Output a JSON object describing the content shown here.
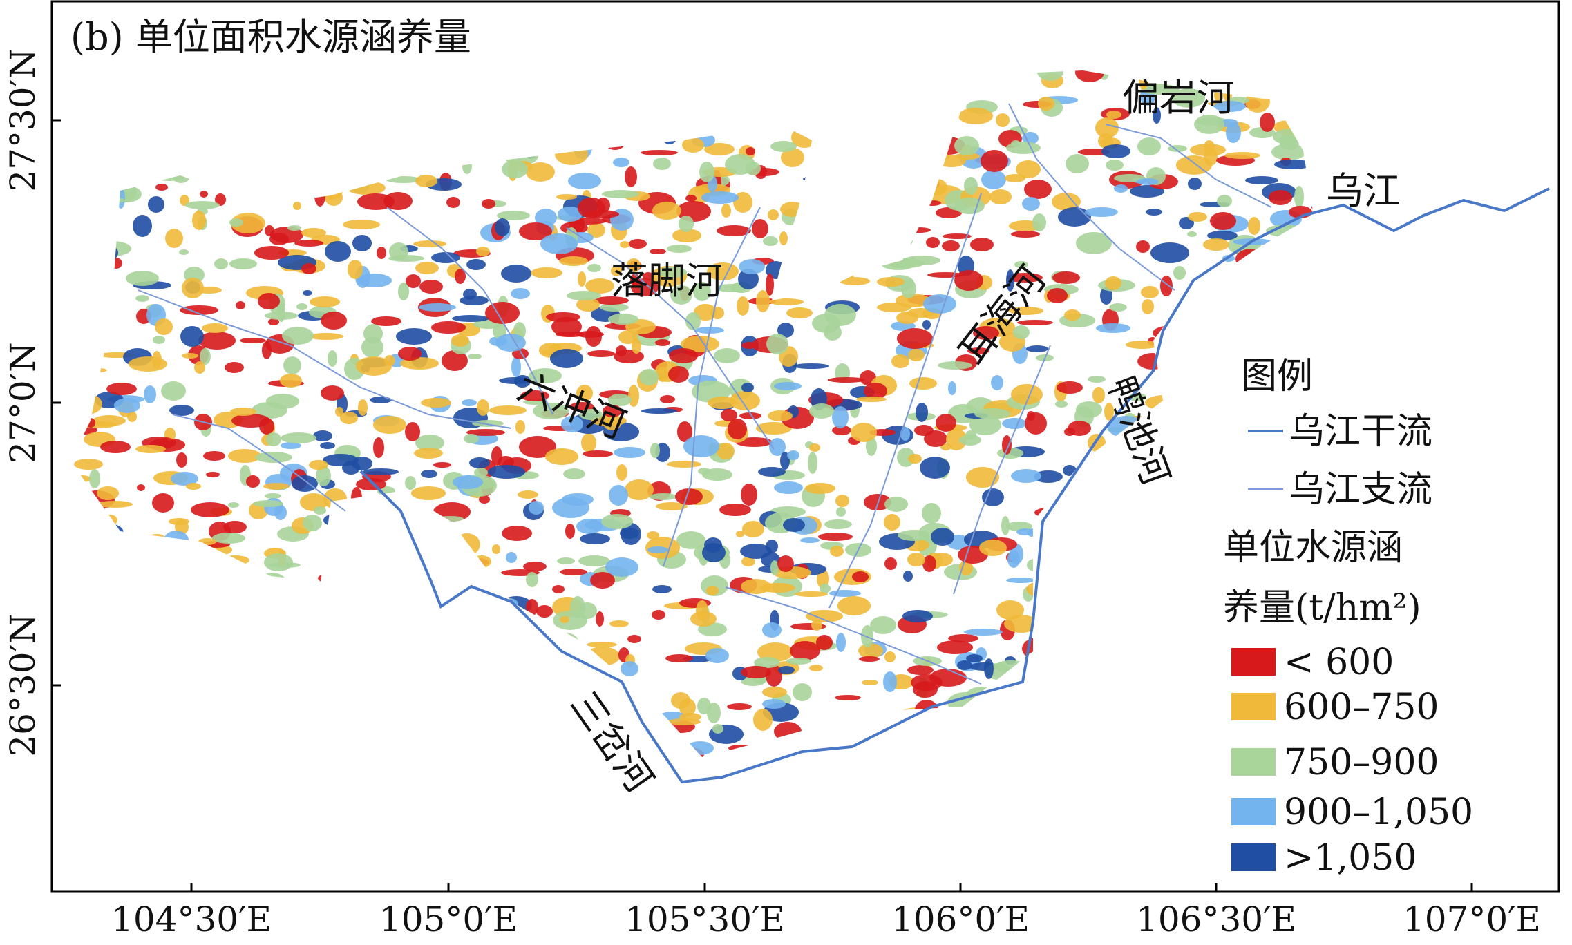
{
  "title": "(b) 单位面积水源涵养量",
  "axes": {
    "x_tick_labels": [
      "104°30′E",
      "105°0′E",
      "105°30′E",
      "106°0′E",
      "106°30′E",
      "107°0′E"
    ],
    "y_tick_labels": [
      "27°30′N",
      "27°0′N",
      "26°30′N"
    ]
  },
  "river_labels": [
    "偏岩河",
    "乌江",
    "落脚河",
    "耳海河",
    "六冲河",
    "鸭池河",
    "三岔河"
  ],
  "legend": {
    "title": "图例",
    "lines": [
      {
        "label": "乌江干流",
        "color": "#4a78c8"
      },
      {
        "label": "乌江支流",
        "color": "#7a9ad8"
      }
    ],
    "scale_title": [
      "单位水源涵",
      "养量(t/hm²)"
    ],
    "classes": [
      {
        "label": "< 600",
        "color": "#d7191c"
      },
      {
        "label": "600–750",
        "color": "#f0b93a"
      },
      {
        "label": "750–900",
        "color": "#a9d49a"
      },
      {
        "label": "900–1,050",
        "color": "#74b4ee"
      },
      {
        "label": ">1,050",
        "color": "#1f4ea3"
      }
    ]
  }
}
